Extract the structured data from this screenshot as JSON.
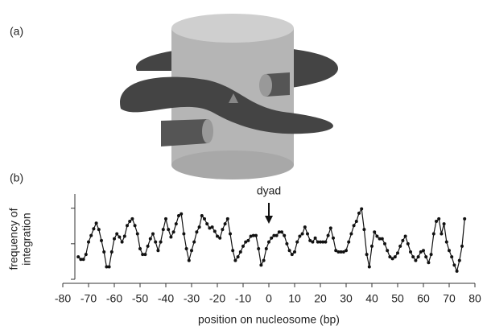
{
  "panel_a": {
    "label": "(a)"
  },
  "chart_data": {
    "type": "line",
    "panel_label": "(b)",
    "xlabel": "position on nucleosome (bp)",
    "ylabel": [
      "frequency of",
      "integration"
    ],
    "annotation": {
      "text": "dyad",
      "x": 0
    },
    "xlim": [
      -80,
      80
    ],
    "xticks": [
      -80,
      -70,
      -60,
      -50,
      -40,
      -30,
      -20,
      -10,
      0,
      10,
      20,
      30,
      40,
      50,
      60,
      70,
      80
    ],
    "ylim": [
      0,
      24
    ],
    "yticks": [
      0,
      10,
      20
    ],
    "x": [
      -74,
      -73,
      -72,
      -71,
      -70,
      -69,
      -68,
      -67,
      -66,
      -65,
      -64,
      -63,
      -62,
      -61,
      -60,
      -59,
      -58,
      -57,
      -56,
      -55,
      -54,
      -53,
      -52,
      -51,
      -50,
      -49,
      -48,
      -47,
      -46,
      -45,
      -44,
      -43,
      -42,
      -41,
      -40,
      -39,
      -38,
      -37,
      -36,
      -35,
      -34,
      -33,
      -32,
      -31,
      -30,
      -29,
      -28,
      -27,
      -26,
      -25,
      -24,
      -23,
      -22,
      -21,
      -20,
      -19,
      -18,
      -17,
      -16,
      -15,
      -14,
      -13,
      -12,
      -11,
      -10,
      -9,
      -8,
      -7,
      -6,
      -5,
      -4,
      -3,
      -2,
      -1,
      0,
      1,
      2,
      3,
      4,
      5,
      6,
      7,
      8,
      9,
      10,
      11,
      12,
      13,
      14,
      15,
      16,
      17,
      18,
      19,
      20,
      21,
      22,
      23,
      24,
      25,
      26,
      27,
      28,
      29,
      30,
      31,
      32,
      33,
      34,
      35,
      36,
      37,
      38,
      39,
      40,
      41,
      42,
      43,
      44,
      45,
      46,
      47,
      48,
      49,
      50,
      51,
      52,
      53,
      54,
      55,
      56,
      57,
      58,
      59,
      60,
      61,
      62,
      63,
      64,
      65,
      66,
      67,
      68,
      69,
      70,
      71,
      72,
      73,
      74,
      75,
      76
    ],
    "series": [
      {
        "color": "#111111",
        "values": [
          6.3,
          5.6,
          5.6,
          7.0,
          10.5,
          12.3,
          14.2,
          15.8,
          14.0,
          10.9,
          7.7,
          3.5,
          3.5,
          7.7,
          11.4,
          12.8,
          11.9,
          10.5,
          12.1,
          15.1,
          16.3,
          17.0,
          15.1,
          12.8,
          8.6,
          7.0,
          7.0,
          9.3,
          11.4,
          12.8,
          10.5,
          8.1,
          10.5,
          14.0,
          17.0,
          14.0,
          11.9,
          13.3,
          15.6,
          17.9,
          18.4,
          12.8,
          8.6,
          5.3,
          8.1,
          10.5,
          13.3,
          14.7,
          17.9,
          17.0,
          15.6,
          14.4,
          14.7,
          13.5,
          12.1,
          11.6,
          14.0,
          15.6,
          17.0,
          12.8,
          8.1,
          5.3,
          6.3,
          7.7,
          9.3,
          10.5,
          10.9,
          12.1,
          12.3,
          12.3,
          8.6,
          4.0,
          5.3,
          8.6,
          10.5,
          11.6,
          12.3,
          12.3,
          13.3,
          13.3,
          12.3,
          10.0,
          8.1,
          7.0,
          7.7,
          10.5,
          12.1,
          12.8,
          14.7,
          12.8,
          10.9,
          10.5,
          11.6,
          10.5,
          10.5,
          10.5,
          10.5,
          12.3,
          14.4,
          11.6,
          8.1,
          7.7,
          7.7,
          7.7,
          8.1,
          10.5,
          12.8,
          15.1,
          16.3,
          18.6,
          19.8,
          14.0,
          7.0,
          3.5,
          9.3,
          13.3,
          12.1,
          11.4,
          11.4,
          10.0,
          8.1,
          6.3,
          5.8,
          6.3,
          7.4,
          9.3,
          10.9,
          12.1,
          10.0,
          7.7,
          6.3,
          5.3,
          6.3,
          7.7,
          8.1,
          6.3,
          4.7,
          7.0,
          12.8,
          16.3,
          17.0,
          12.8,
          15.6,
          10.5,
          8.1,
          6.3,
          4.0,
          2.3,
          5.3,
          9.3,
          17.0
        ]
      }
    ]
  }
}
